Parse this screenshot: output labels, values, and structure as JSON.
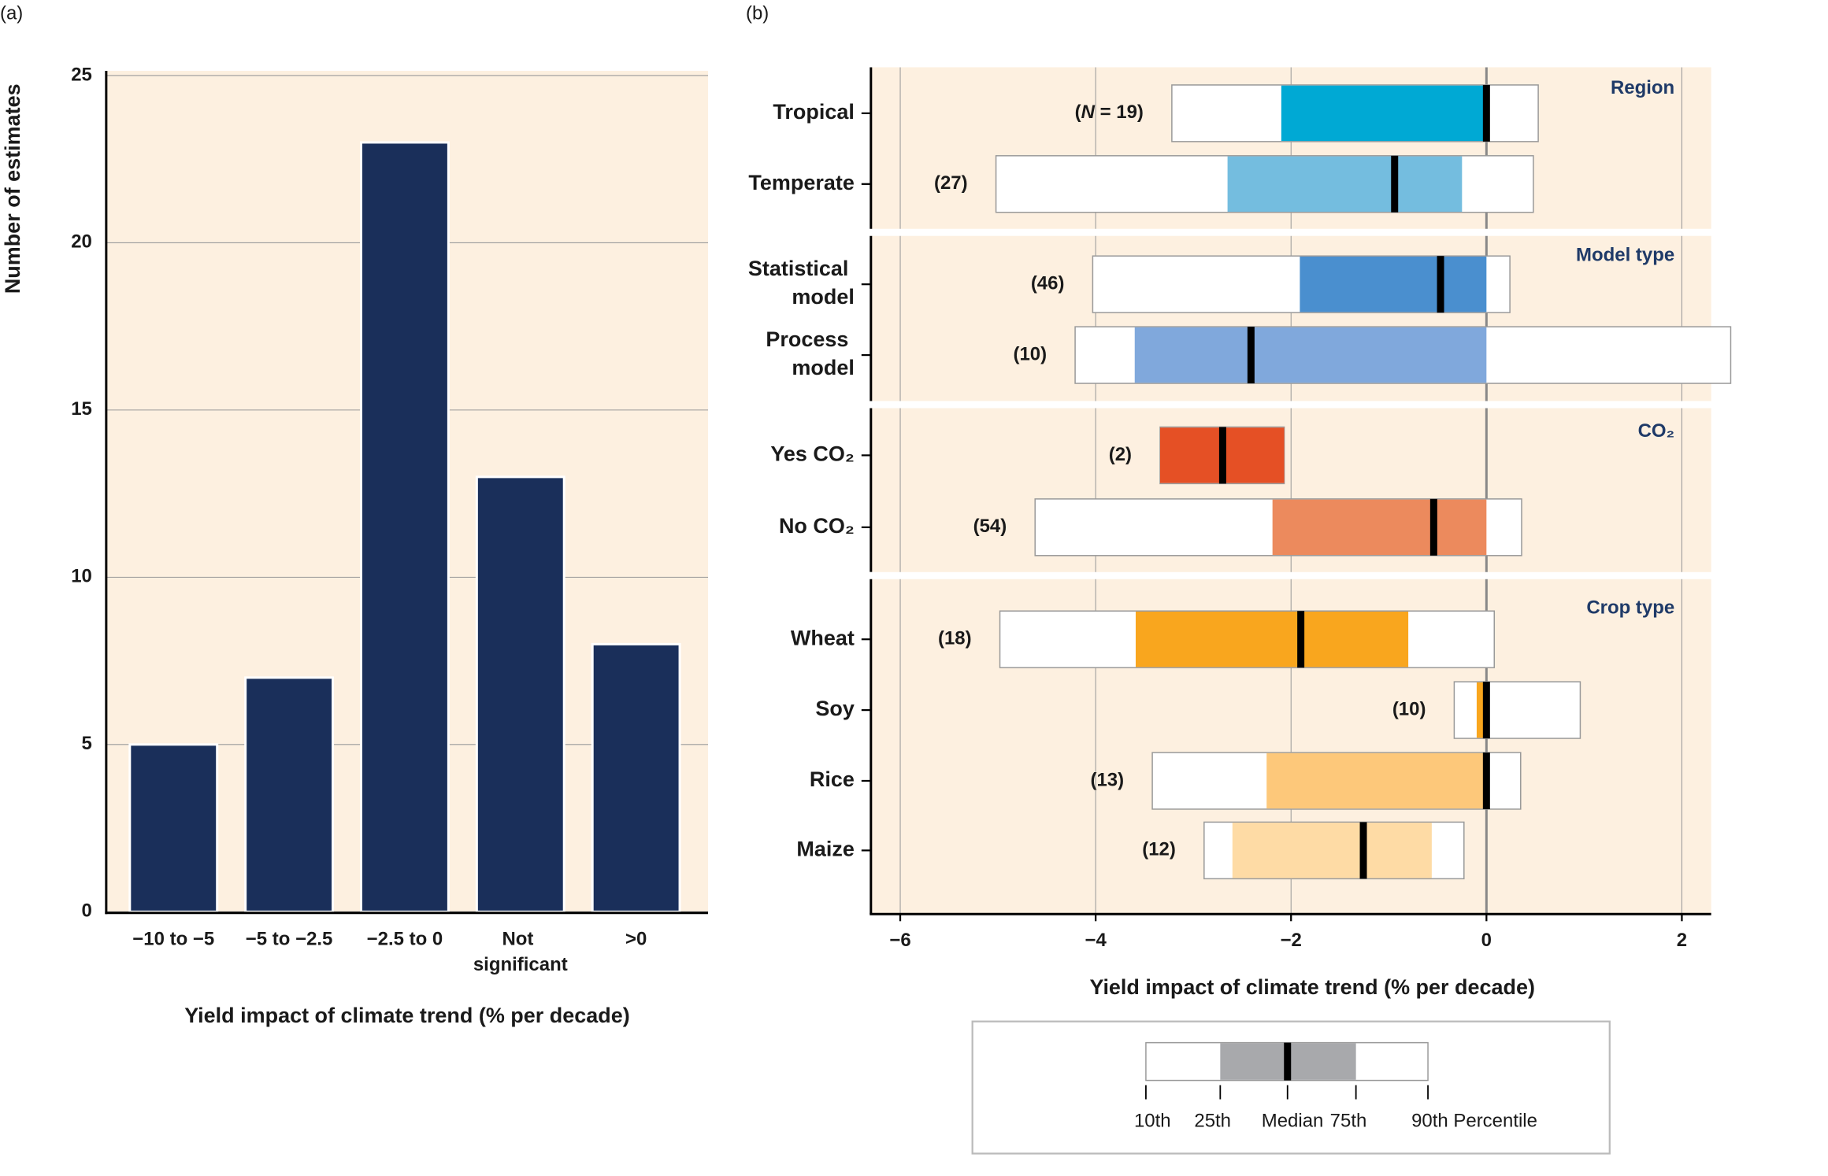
{
  "chart_data": [
    {
      "type": "bar",
      "panel": "(a)",
      "ylabel": "Number of estimates",
      "xlabel": "Yield impact of climate trend (% per decade)",
      "categories": [
        "−10 to −5",
        "−5 to −2.5",
        "−2.5 to 0",
        "Not significant",
        ">0"
      ],
      "values": [
        5,
        7,
        23,
        13,
        8
      ],
      "color": "#1a2f5a",
      "ylim": [
        0,
        25
      ],
      "yticks": [
        0,
        5,
        10,
        15,
        20,
        25
      ],
      "grid": true
    },
    {
      "type": "box",
      "panel": "(b)",
      "xlabel": "Yield impact of climate trend  (% per decade)",
      "xlim": [
        -6.3,
        2.3
      ],
      "xticks": [
        {
          "value": -6,
          "label": "−6"
        },
        {
          "value": -4,
          "label": "−4"
        },
        {
          "value": -2,
          "label": "−2"
        },
        0,
        2
      ],
      "grid": true,
      "groups": [
        {
          "name": "Region",
          "rows": [
            {
              "label": "Tropical",
              "n_label": "(N = 19)",
              "color": "#00a9d4",
              "p10": -3.22,
              "p25": -2.1,
              "median": 0,
              "p75": 0,
              "p90": 0.53
            },
            {
              "label": "Temperate",
              "n_label": "(27)",
              "color": "#74bddf",
              "p10": -5.02,
              "p25": -2.65,
              "median": -0.94,
              "p75": -0.25,
              "p90": 0.48
            }
          ]
        },
        {
          "name": "Model type",
          "rows": [
            {
              "label": "Statistical model",
              "n_label": "(46)",
              "color": "#4a8fcf",
              "p10": -4.03,
              "p25": -1.91,
              "median": -0.47,
              "p75": 0,
              "p90": 0.24
            },
            {
              "label": "Process model",
              "n_label": "(10)",
              "color": "#80a8dc",
              "p10": -4.21,
              "p25": -3.6,
              "median": -2.41,
              "p75": 0,
              "p90": 2.5
            }
          ]
        },
        {
          "name": "CO₂",
          "rows": [
            {
              "label": "Yes CO₂",
              "n_label": "(2)",
              "color": "#e55025",
              "p10": -3.34,
              "p25": -3.34,
              "median": -2.7,
              "p75": -2.07,
              "p90": -2.07
            },
            {
              "label": "No CO₂",
              "n_label": "(54)",
              "color": "#ec8a5d",
              "p10": -4.62,
              "p25": -2.19,
              "median": -0.54,
              "p75": 0,
              "p90": 0.36
            }
          ]
        },
        {
          "name": "Crop type",
          "rows": [
            {
              "label": "Wheat",
              "n_label": "(18)",
              "color": "#f9a61e",
              "p10": -4.98,
              "p25": -3.59,
              "median": -1.9,
              "p75": -0.8,
              "p90": 0.08
            },
            {
              "label": "Soy",
              "n_label": "(10)",
              "color": "#f9a61e",
              "p10": -0.33,
              "p25": -0.1,
              "median": 0,
              "p75": 0,
              "p90": 0.96
            },
            {
              "label": "Rice",
              "n_label": "(13)",
              "color": "#fdc87a",
              "p10": -3.42,
              "p25": -2.25,
              "median": 0,
              "p75": 0,
              "p90": 0.35
            },
            {
              "label": "Maize",
              "n_label": "(12)",
              "color": "#fedba5",
              "p10": -2.89,
              "p25": -2.6,
              "median": -1.26,
              "p75": -0.56,
              "p90": -0.23
            }
          ]
        }
      ],
      "legend_labels": [
        "10th",
        "25th",
        "Median",
        "75th",
        "90th Percentile"
      ]
    }
  ]
}
